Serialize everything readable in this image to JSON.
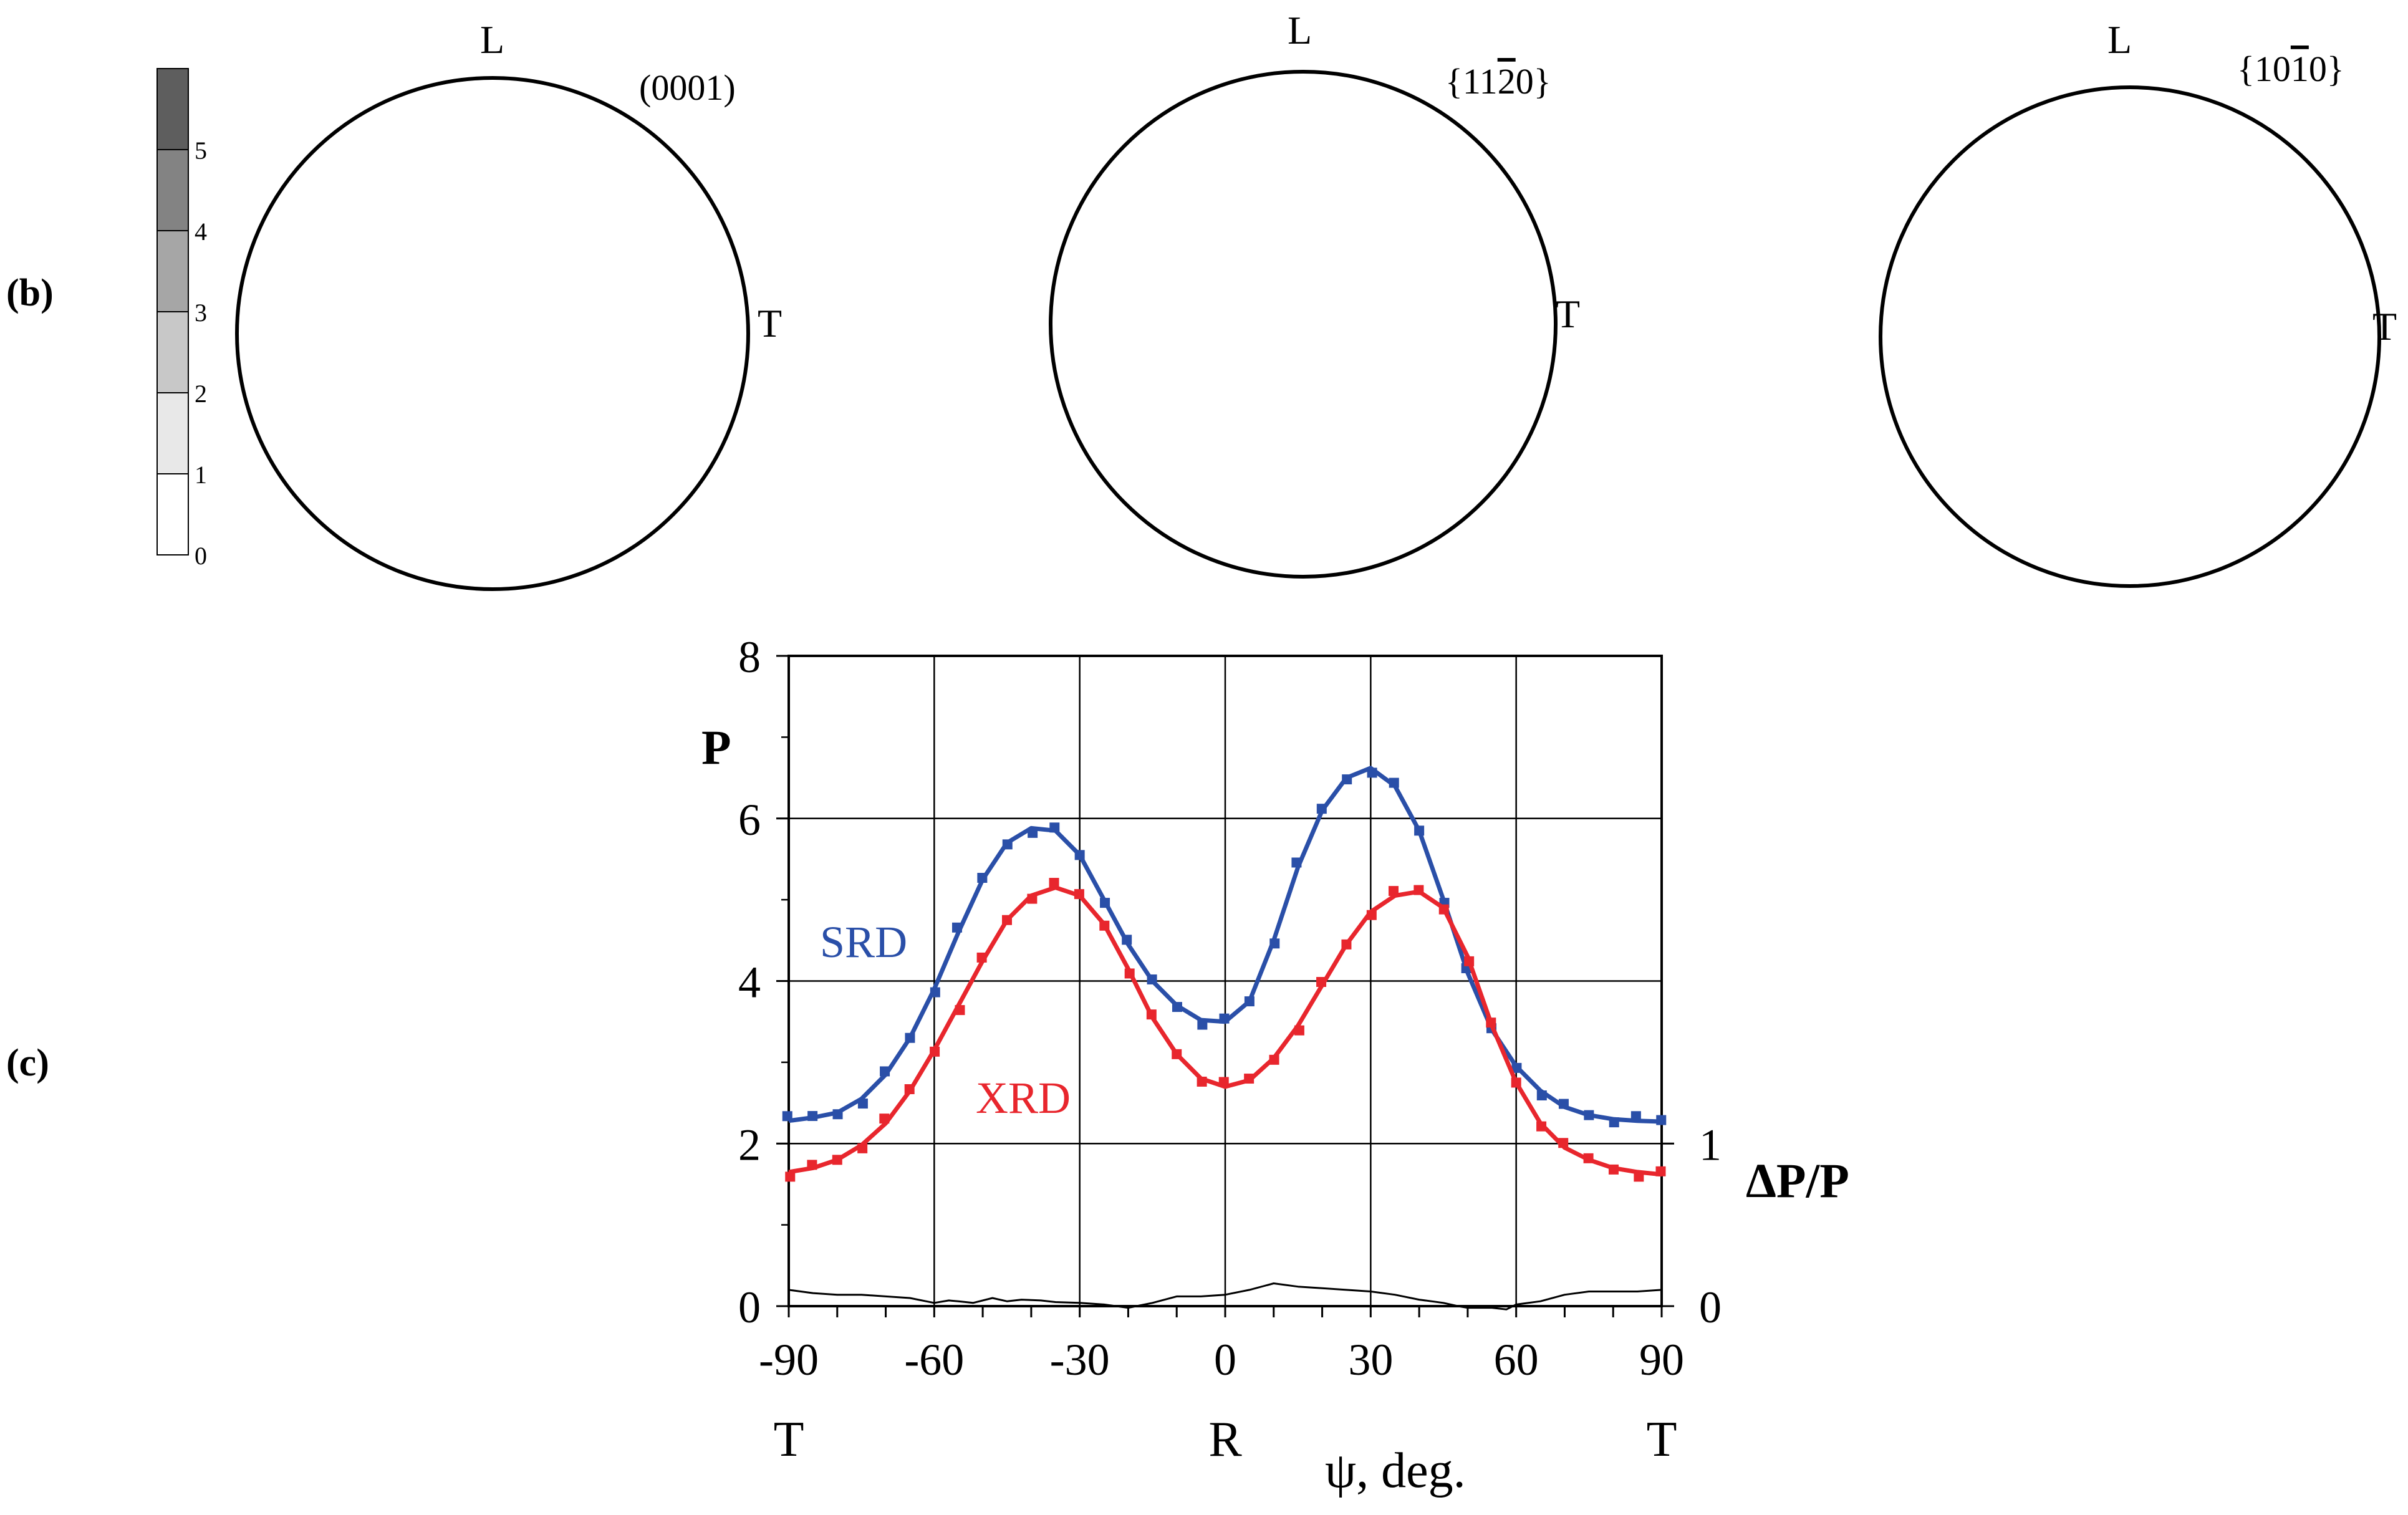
{
  "panel_b": {
    "label_open": "(",
    "label_letter": "b",
    "label_close": ")",
    "scale": {
      "ticks": [
        "0",
        "1",
        "2",
        "3",
        "4",
        "5"
      ],
      "levels": [
        "#ffffff",
        "#e8e8e8",
        "#c8c8c8",
        "#a6a6a6",
        "#838383",
        "#5e5e5e"
      ]
    },
    "pole_figures": [
      {
        "title": "(0001)",
        "top_label": "L",
        "right_label": "T"
      },
      {
        "title": "{1120}",
        "title_parts": [
          "{11",
          "2",
          "0}"
        ],
        "top_label": "L",
        "right_label": "T"
      },
      {
        "title": "{1010}",
        "title_parts": [
          "{10",
          "1",
          "0}"
        ],
        "top_label": "L",
        "right_label": "T"
      }
    ]
  },
  "panel_c": {
    "label_open": "(",
    "label_letter": "c",
    "label_close": ")"
  },
  "chart_data": {
    "type": "line",
    "xlabel": "ψ,   deg.",
    "ylabel": "P",
    "y2label": "ΔP/P",
    "xlim": [
      -90,
      90
    ],
    "ylim": [
      0,
      8
    ],
    "y2lim": [
      0,
      1
    ],
    "x_ticks": [
      "-90",
      "-60",
      "-30",
      "0",
      "30",
      "60",
      "90"
    ],
    "y_ticks": [
      "0",
      "2",
      "4",
      "6",
      "8"
    ],
    "y2_ticks": [
      "0",
      "1"
    ],
    "x_sub_labels": [
      {
        "x": -90,
        "text": "T"
      },
      {
        "x": 0,
        "text": "R"
      },
      {
        "x": 90,
        "text": "T"
      }
    ],
    "grid": true,
    "series": [
      {
        "name": "SRD",
        "color": "#2a4fa8",
        "x": [
          -90,
          -85,
          -80,
          -75,
          -70,
          -65,
          -60,
          -55,
          -50,
          -45,
          -40,
          -35,
          -30,
          -25,
          -20,
          -15,
          -10,
          -5,
          0,
          5,
          10,
          15,
          20,
          25,
          30,
          35,
          40,
          45,
          50,
          55,
          60,
          65,
          70,
          75,
          80,
          85,
          90
        ],
        "values": [
          2.28,
          2.32,
          2.38,
          2.55,
          2.85,
          3.3,
          3.9,
          4.6,
          5.25,
          5.7,
          5.88,
          5.85,
          5.55,
          5.0,
          4.45,
          4.0,
          3.7,
          3.52,
          3.5,
          3.75,
          4.5,
          5.4,
          6.1,
          6.5,
          6.62,
          6.4,
          5.85,
          5.0,
          4.1,
          3.4,
          2.95,
          2.65,
          2.45,
          2.35,
          2.3,
          2.28,
          2.27
        ]
      },
      {
        "name": "XRD",
        "color": "#e8262d",
        "x": [
          -90,
          -85,
          -80,
          -75,
          -70,
          -65,
          -60,
          -55,
          -50,
          -45,
          -40,
          -35,
          -30,
          -25,
          -20,
          -15,
          -10,
          -5,
          0,
          5,
          10,
          15,
          20,
          25,
          30,
          35,
          40,
          45,
          50,
          55,
          60,
          65,
          70,
          75,
          80,
          85,
          90
        ],
        "values": [
          1.65,
          1.7,
          1.8,
          1.98,
          2.25,
          2.65,
          3.15,
          3.7,
          4.25,
          4.75,
          5.05,
          5.15,
          5.05,
          4.7,
          4.15,
          3.55,
          3.1,
          2.8,
          2.7,
          2.78,
          3.05,
          3.45,
          3.95,
          4.45,
          4.85,
          5.05,
          5.1,
          4.9,
          4.3,
          3.45,
          2.75,
          2.25,
          1.95,
          1.8,
          1.7,
          1.65,
          1.62
        ]
      },
      {
        "name": "",
        "axis": "y2",
        "color": "#000000",
        "x": [
          -90,
          -85,
          -80,
          -75,
          -70,
          -65,
          -60,
          -57,
          -55,
          -52,
          -48,
          -45,
          -42,
          -38,
          -35,
          -30,
          -25,
          -20,
          -15,
          -10,
          -5,
          0,
          5,
          10,
          15,
          20,
          25,
          30,
          35,
          40,
          45,
          48,
          50,
          55,
          58,
          60,
          65,
          70,
          75,
          80,
          85,
          90
        ],
        "values": [
          0.1,
          0.08,
          0.07,
          0.07,
          0.06,
          0.05,
          0.02,
          0.035,
          0.03,
          0.02,
          0.05,
          0.03,
          0.04,
          0.035,
          0.025,
          0.02,
          0.01,
          -0.01,
          0.02,
          0.06,
          0.06,
          0.07,
          0.1,
          0.14,
          0.12,
          0.11,
          0.1,
          0.09,
          0.07,
          0.04,
          0.02,
          0.0,
          -0.01,
          -0.01,
          -0.02,
          0.01,
          0.03,
          0.07,
          0.09,
          0.09,
          0.09,
          0.1
        ]
      }
    ]
  }
}
